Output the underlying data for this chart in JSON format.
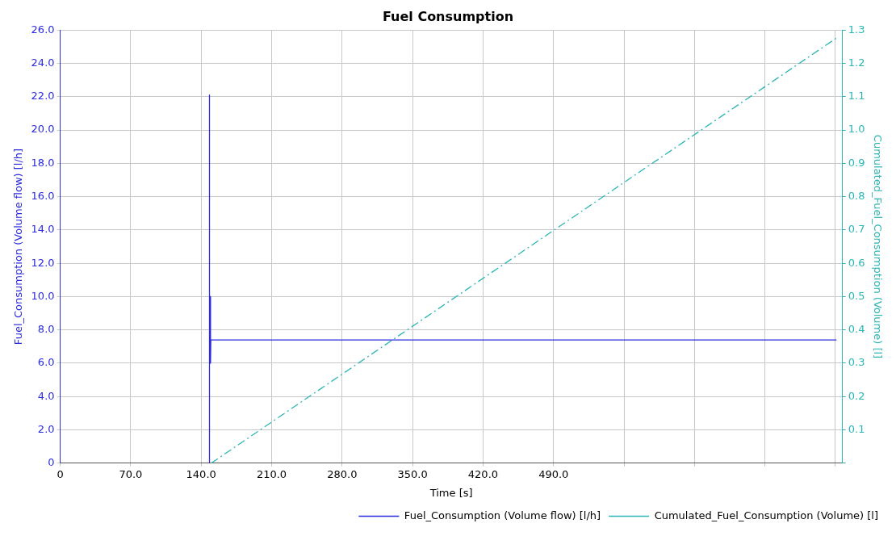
{
  "chart_data": {
    "type": "line",
    "title": "Fuel Consumption",
    "xlabel": "Time [s]",
    "ylabel": "Fuel_Consumption (Volume flow) [l/h]",
    "y2label": "Cumulated_Fuel_Consumption (Volume) [l]",
    "series": [
      {
        "name": "Fuel_Consumption (Volume flow) [l/h]",
        "color": "#2a2ae0",
        "line_style": "solid",
        "x": [
          148,
          148,
          148.6,
          149,
          149.3,
          149.6,
          150.5,
          771
        ],
        "values": [
          0,
          22.1,
          6,
          10,
          6,
          7.4,
          7.4,
          7.4
        ]
      },
      {
        "name": "Cumulated_Fuel_Consumption (Volume) [l]",
        "color": "#2bb5b5",
        "line_style": "dashed",
        "axis": "y2",
        "x": [
          150,
          773
        ],
        "values": [
          0,
          1.28
        ]
      }
    ],
    "xlim": [
      0,
      777
    ],
    "xticks": [
      {
        "value": 0,
        "label": "0"
      },
      {
        "value": 70,
        "label": "70.0"
      },
      {
        "value": 140,
        "label": "140.0"
      },
      {
        "value": 210,
        "label": "210.0"
      },
      {
        "value": 280,
        "label": "280.0"
      },
      {
        "value": 350,
        "label": "350.0"
      },
      {
        "value": 420,
        "label": "420.0"
      },
      {
        "value": 490,
        "label": "490.0"
      },
      {
        "value": 560,
        "label": null
      },
      {
        "value": 630,
        "label": null
      },
      {
        "value": 700,
        "label": null
      },
      {
        "value": 770,
        "label": null
      }
    ],
    "ylim": [
      0,
      26
    ],
    "yticks": [
      {
        "value": 0,
        "label": "0"
      },
      {
        "value": 2,
        "label": "2.0"
      },
      {
        "value": 4,
        "label": "4.0"
      },
      {
        "value": 6,
        "label": "6.0"
      },
      {
        "value": 8,
        "label": "8.0"
      },
      {
        "value": 10,
        "label": "10.0"
      },
      {
        "value": 12,
        "label": "12.0"
      },
      {
        "value": 14,
        "label": "14.0"
      },
      {
        "value": 16,
        "label": "16.0"
      },
      {
        "value": 18,
        "label": "18.0"
      },
      {
        "value": 20,
        "label": "20.0"
      },
      {
        "value": 22,
        "label": "22.0"
      },
      {
        "value": 24,
        "label": "24.0"
      },
      {
        "value": 26,
        "label": "26.0"
      }
    ],
    "y2lim": [
      0,
      1.3
    ],
    "y2ticks": [
      {
        "value": 0,
        "label": null
      },
      0.1,
      0.2,
      0.3,
      0.4,
      0.5,
      0.6,
      0.7,
      0.8,
      0.9,
      {
        "value": 1.0,
        "label": "1.0"
      },
      1.1,
      1.2,
      1.3
    ],
    "grid": true,
    "legend": "bottom right",
    "marker": "none"
  }
}
